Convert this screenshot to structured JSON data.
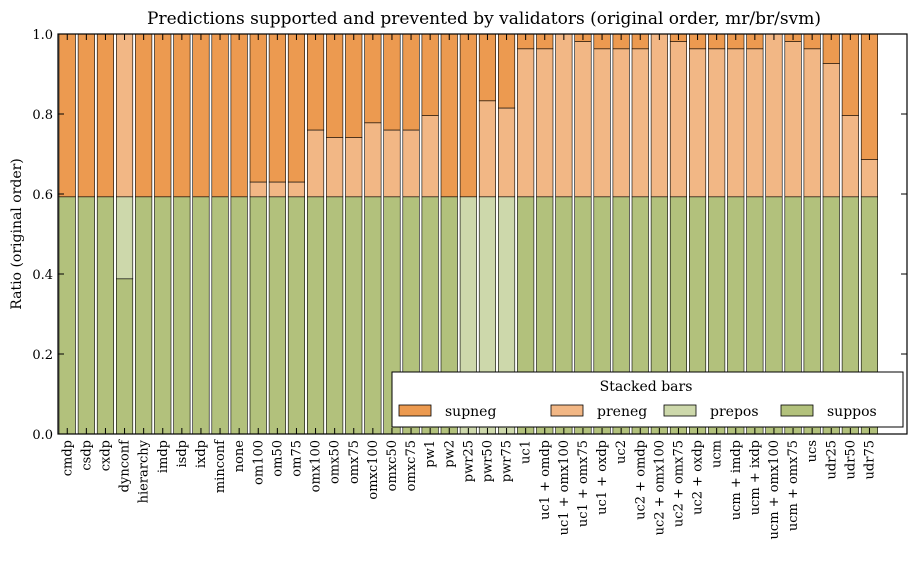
{
  "chart_data": {
    "type": "bar",
    "stacked": true,
    "title": "Predictions supported and prevented by validators (original order, mr/br/svm)",
    "xlabel": "",
    "ylabel": "Ratio (original order)",
    "ylim": [
      0,
      1.0
    ],
    "yticks": [
      "0.0",
      "0.2",
      "0.4",
      "0.6",
      "0.8",
      "1.0"
    ],
    "grid": false,
    "legend": {
      "title": "Stacked bars",
      "placement": "lower-right",
      "entries": [
        "supneg",
        "preneg",
        "prepos",
        "suppos"
      ]
    },
    "categories": [
      "cmdp",
      "csdp",
      "cxdp",
      "dynconf",
      "hierarchy",
      "imdp",
      "isdp",
      "ixdp",
      "minconf",
      "none",
      "om100",
      "om50",
      "om75",
      "omx100",
      "omx50",
      "omx75",
      "omxc100",
      "omxc50",
      "omxc75",
      "pw1",
      "pw2",
      "pwr25",
      "pwr50",
      "pwr75",
      "uc1",
      "uc1 + omdp",
      "uc1 + omx100",
      "uc1 + omx75",
      "uc1 + oxdp",
      "uc2",
      "uc2 + omdp",
      "uc2 + omx100",
      "uc2 + omx75",
      "uc2 + oxdp",
      "ucm",
      "ucm + imdp",
      "ucm + ixdp",
      "ucm + omx100",
      "ucm + omx75",
      "ucs",
      "udr25",
      "udr50",
      "udr75"
    ],
    "series": [
      {
        "name": "suppos",
        "color": "#b2c17c",
        "values": [
          0.593,
          0.593,
          0.593,
          0.388,
          0.593,
          0.593,
          0.593,
          0.593,
          0.593,
          0.593,
          0.593,
          0.593,
          0.593,
          0.593,
          0.593,
          0.593,
          0.593,
          0.593,
          0.593,
          0.593,
          0.593,
          0,
          0,
          0,
          0.593,
          0.593,
          0.593,
          0.593,
          0.593,
          0.593,
          0.593,
          0.593,
          0.593,
          0.593,
          0.593,
          0.593,
          0.593,
          0.593,
          0.593,
          0.593,
          0.593,
          0.593,
          0.593
        ]
      },
      {
        "name": "prepos",
        "color": "#cdd8ab",
        "values": [
          0,
          0,
          0,
          0.205,
          0,
          0,
          0,
          0,
          0,
          0,
          0,
          0,
          0,
          0,
          0,
          0,
          0,
          0,
          0,
          0,
          0,
          0.593,
          0.593,
          0.593,
          0,
          0,
          0,
          0,
          0,
          0,
          0,
          0,
          0,
          0,
          0,
          0,
          0,
          0,
          0,
          0,
          0,
          0,
          0
        ]
      },
      {
        "name": "preneg",
        "color": "#f2b785",
        "values": [
          0,
          0,
          0,
          0.407,
          0,
          0,
          0,
          0,
          0,
          0,
          0.037,
          0.037,
          0.037,
          0.167,
          0.148,
          0.148,
          0.185,
          0.167,
          0.167,
          0.203,
          0,
          0,
          0.24,
          0.222,
          0.37,
          0.37,
          0.407,
          0.388,
          0.37,
          0.37,
          0.37,
          0.407,
          0.388,
          0.37,
          0.37,
          0.37,
          0.37,
          0.407,
          0.388,
          0.37,
          0.333,
          0.203,
          0.093
        ]
      },
      {
        "name": "supneg",
        "color": "#ec9a50",
        "values": [
          0.407,
          0.407,
          0.407,
          0,
          0.407,
          0.407,
          0.407,
          0.407,
          0.407,
          0.407,
          0.37,
          0.37,
          0.37,
          0.24,
          0.259,
          0.259,
          0.222,
          0.24,
          0.24,
          0.204,
          0.407,
          0.407,
          0.167,
          0.185,
          0.037,
          0.037,
          0,
          0.019,
          0.037,
          0.037,
          0.037,
          0,
          0.019,
          0.037,
          0.037,
          0.037,
          0.037,
          0,
          0.019,
          0.037,
          0.074,
          0.204,
          0.314
        ]
      }
    ]
  }
}
